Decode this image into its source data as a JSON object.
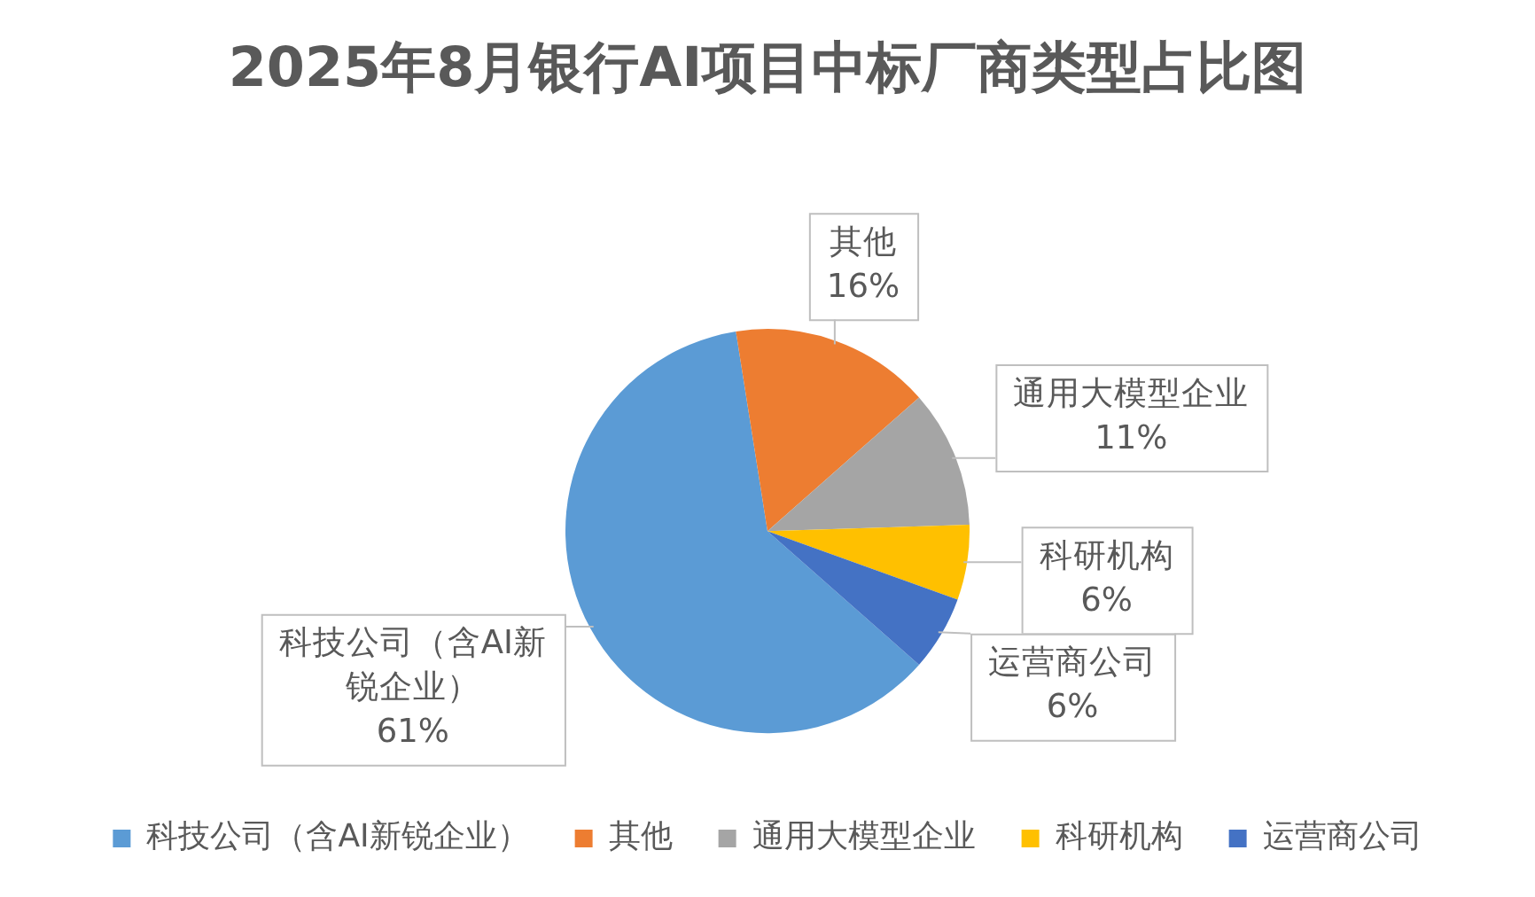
{
  "chart_data": {
    "type": "pie",
    "title": "2025年8月银行AI项目中标厂商类型占比图",
    "categories": [
      "科技公司（含AI新锐企业）",
      "其他",
      "通用大模型企业",
      "科研机构",
      "运营商公司"
    ],
    "values": [
      61,
      16,
      11,
      6,
      6
    ],
    "value_labels": [
      "61%",
      "16%",
      "11%",
      "6%",
      "6%"
    ],
    "colors": [
      "#5b9bd5",
      "#ed7d31",
      "#a5a5a5",
      "#ffc000",
      "#4472c4"
    ],
    "legend": "bottom"
  }
}
